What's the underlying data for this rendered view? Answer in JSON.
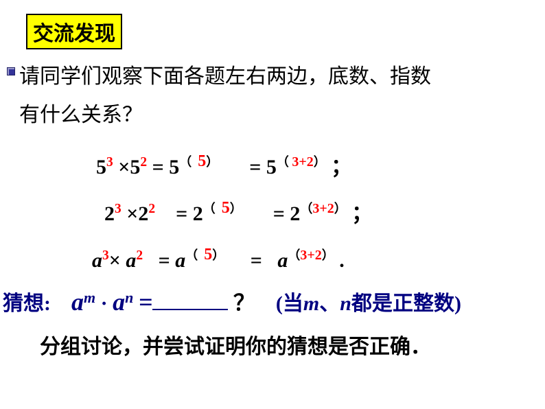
{
  "header": {
    "label": "交流发现",
    "bg_color": "#ffff00",
    "border_color": "#000000",
    "text_color": "#000000"
  },
  "intro": {
    "line1": "请同学们观察下面各题左右两边，底数、指数",
    "line2": "有什么关系？"
  },
  "equations": {
    "row1": {
      "base": "5",
      "exp1": "3",
      "exp2": "2",
      "result_exp": "5",
      "sum_exp": "3+2",
      "terminator": "；"
    },
    "row2": {
      "base": "2",
      "exp1": "3",
      "exp2": "2",
      "result_exp": "5",
      "sum_exp": "3+2",
      "terminator": "；"
    },
    "row3": {
      "base": "a",
      "exp1": "3",
      "exp2": "2",
      "result_exp": "5",
      "sum_exp": "3+2",
      "terminator": "."
    }
  },
  "conjecture": {
    "label": "猜想:",
    "expr_base": "a",
    "expr_m": "m",
    "expr_dot": " · ",
    "expr_n": "n",
    "equals": "=",
    "qmark": "？",
    "cond_open": "(当",
    "cond_m": "m",
    "cond_sep": "、",
    "cond_n": "n",
    "cond_close": "都是正整数)"
  },
  "discuss": "分组讨论，并尝试证明你的猜想是否正确．",
  "colors": {
    "red": "#ff0000",
    "navy": "#000080",
    "black": "#000000",
    "highlight_bg": "#ffff00"
  }
}
